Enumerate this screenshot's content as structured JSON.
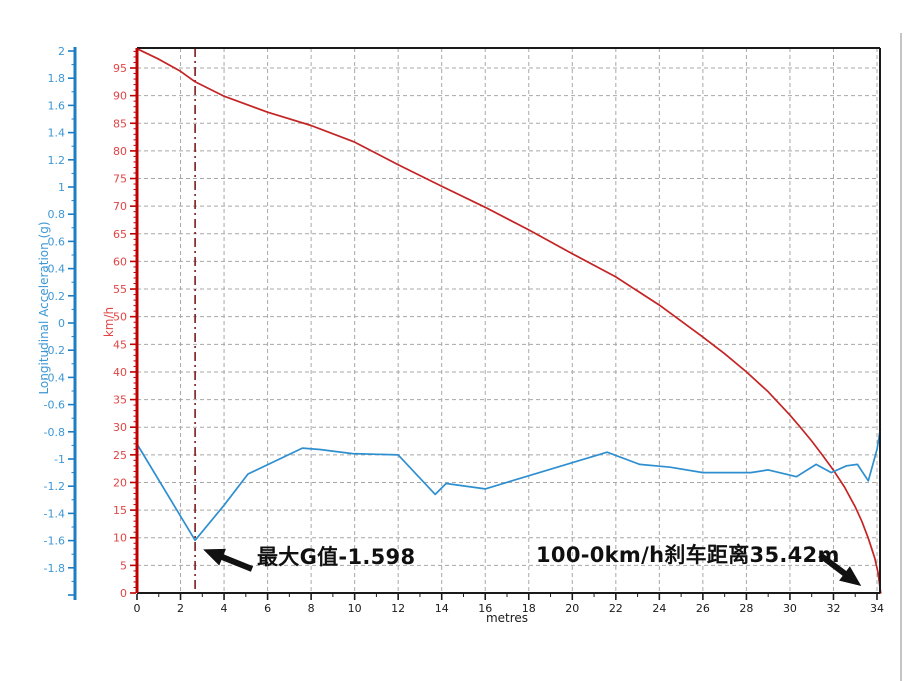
{
  "chart_data": {
    "type": "line",
    "title": "",
    "grid": true,
    "x_axis": {
      "label": "metres",
      "min": 0,
      "max": 34.15,
      "major_tick": 2,
      "minor_tick": 1,
      "tick_labels": [
        "0",
        "2",
        "4",
        "6",
        "8",
        "10",
        "12",
        "14",
        "16",
        "18",
        "20",
        "22",
        "24",
        "26",
        "28",
        "30",
        "32",
        "34"
      ]
    },
    "speed_axis": {
      "label": "km/h",
      "min": 0,
      "max": 98.6,
      "major_tick": 5,
      "minor_tick": 1,
      "tick_labels": [
        "0",
        "5",
        "10",
        "15",
        "20",
        "25",
        "30",
        "35",
        "40",
        "45",
        "50",
        "55",
        "60",
        "65",
        "70",
        "75",
        "80",
        "85",
        "90",
        "95"
      ]
    },
    "g_axis": {
      "label": "Longitudinal Acceleration (g)",
      "min": -2,
      "max": 2,
      "major_tick": 0.2,
      "minor_tick": 0.1,
      "tick_labels": [
        "2",
        "1.8",
        "1.6",
        "1.4",
        "1.2",
        "1",
        "0.8",
        "0.6",
        "0.4",
        "0.2",
        "0",
        "-0.2",
        "-0.4",
        "-0.6",
        "-0.8",
        "-1",
        "-1.2",
        "-1.4",
        "-1.6",
        "-1.8"
      ]
    },
    "series": [
      {
        "name": "speed_kmh",
        "axis": "kmh",
        "color": "#c42424",
        "points": [
          [
            0,
            98.5
          ],
          [
            1,
            96.6
          ],
          [
            2,
            94.4
          ],
          [
            2.67,
            92.5
          ],
          [
            4,
            89.9
          ],
          [
            6,
            87.0
          ],
          [
            8,
            84.6
          ],
          [
            10,
            81.6
          ],
          [
            12,
            77.5
          ],
          [
            14,
            73.6
          ],
          [
            16,
            69.8
          ],
          [
            18,
            65.7
          ],
          [
            20,
            61.4
          ],
          [
            22,
            57.2
          ],
          [
            24,
            52.1
          ],
          [
            26,
            46.3
          ],
          [
            27,
            43.3
          ],
          [
            28,
            40.0
          ],
          [
            29,
            36.4
          ],
          [
            30,
            32.2
          ],
          [
            30.5,
            29.9
          ],
          [
            31,
            27.5
          ],
          [
            31.5,
            24.9
          ],
          [
            32,
            22.2
          ],
          [
            32.5,
            19.2
          ],
          [
            33,
            15.6
          ],
          [
            33.3,
            13.0
          ],
          [
            33.6,
            9.9
          ],
          [
            33.9,
            6.3
          ],
          [
            34.05,
            3.6
          ],
          [
            34.17,
            0
          ]
        ]
      },
      {
        "name": "longitudinal_acceleration_g",
        "axis": "g",
        "color": "#2e8fd0",
        "points": [
          [
            0,
            -0.89
          ],
          [
            2.67,
            -1.598
          ],
          [
            4.0,
            -1.34
          ],
          [
            5.1,
            -1.11
          ],
          [
            7.6,
            -0.92
          ],
          [
            8.4,
            -0.93
          ],
          [
            9.9,
            -0.96
          ],
          [
            12.0,
            -0.97
          ],
          [
            13.7,
            -1.26
          ],
          [
            14.2,
            -1.18
          ],
          [
            16.0,
            -1.22
          ],
          [
            21.6,
            -0.95
          ],
          [
            23.1,
            -1.04
          ],
          [
            24.5,
            -1.06
          ],
          [
            26.0,
            -1.1
          ],
          [
            28.2,
            -1.1
          ],
          [
            29.0,
            -1.08
          ],
          [
            30.3,
            -1.13
          ],
          [
            31.2,
            -1.04
          ],
          [
            31.9,
            -1.1
          ],
          [
            32.6,
            -1.05
          ],
          [
            33.1,
            -1.04
          ],
          [
            33.6,
            -1.16
          ],
          [
            34.0,
            -0.93
          ],
          [
            34.15,
            -0.78
          ]
        ]
      }
    ],
    "marker_line": {
      "x_metres": 2.67,
      "style": "dash-dot",
      "color": "#7a1c1c"
    },
    "annotations": [
      {
        "text": "最大G值-1.598",
        "target": {
          "x_metres": 2.67,
          "g": -1.598
        }
      },
      {
        "text": "100-0km/h刹车距离35.42m",
        "target": {
          "x_metres": 34.15,
          "kmh": 0
        }
      }
    ],
    "colors": {
      "speed_curve": "#c42424",
      "g_curve": "#2e8fd0",
      "speed_axis_line": "#c00000",
      "g_axis_line": "#1d7dc4",
      "speed_tick_labels": "#e04545",
      "g_tick_labels": "#3d97d4",
      "x_tick_labels": "#1a1a1a",
      "grid": "#a8a8a8",
      "plot_border": "#1a1a1a",
      "annotation_text": "#101010"
    }
  }
}
